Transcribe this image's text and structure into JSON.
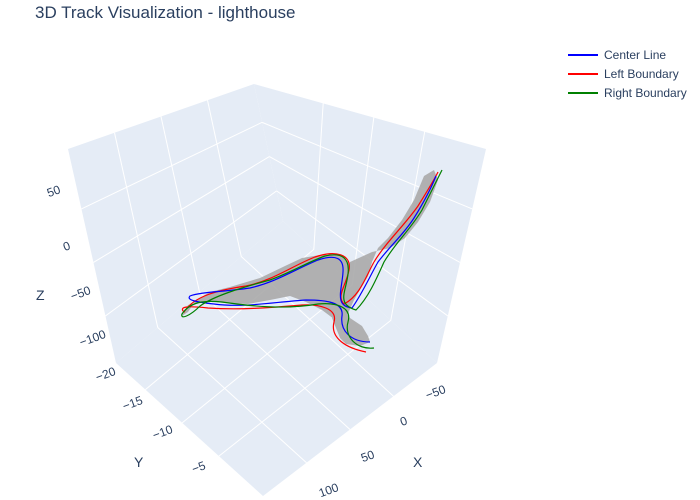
{
  "chart_data": {
    "type": "line",
    "title": "3D Track Visualization - lighthouse",
    "axes": {
      "x": {
        "title": "X",
        "ticks": [
          "−50",
          "0",
          "50",
          "100"
        ]
      },
      "y": {
        "title": "Y",
        "ticks": [
          "−20",
          "−15",
          "−10",
          "−5"
        ]
      },
      "z": {
        "title": "Z",
        "ticks": [
          "50",
          "0",
          "−50",
          "−100"
        ]
      }
    },
    "grid": true,
    "legend_position": "top-right",
    "series": [
      {
        "name": "Center Line",
        "color": "#0000ff"
      },
      {
        "name": "Left Boundary",
        "color": "#ff0000"
      },
      {
        "name": "Right Boundary",
        "color": "#008000"
      }
    ],
    "scene_colors": {
      "wall": "#e5ecf6",
      "gridline": "#ffffff",
      "track_fill": "#aaaaaa"
    }
  }
}
